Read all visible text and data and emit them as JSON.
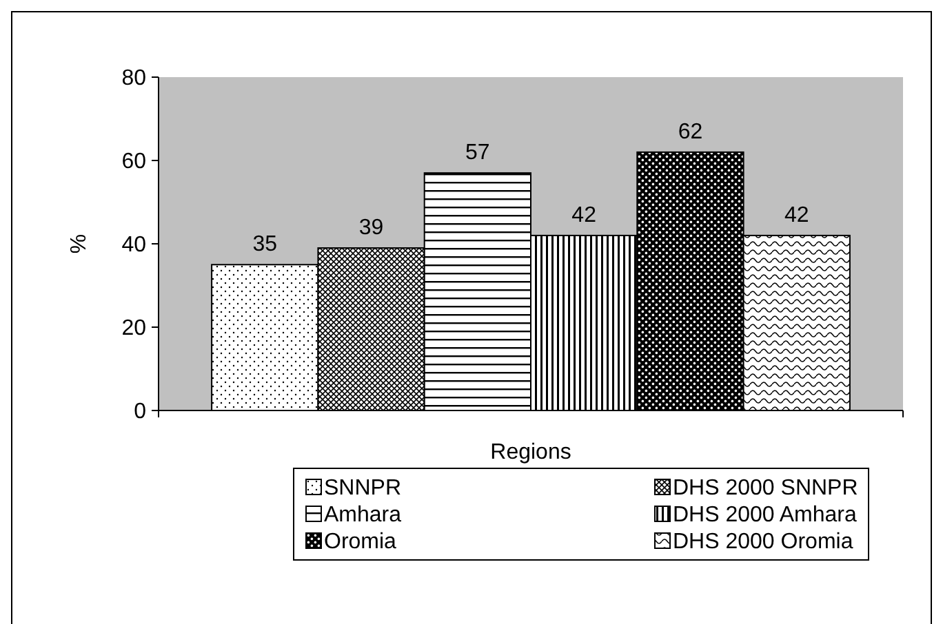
{
  "chart_data": {
    "type": "bar",
    "xlabel": "Regions",
    "ylabel": "%",
    "categories": [
      null
    ],
    "series": [
      {
        "name": "SNNPR",
        "color": "#000000",
        "values": [
          35
        ]
      },
      {
        "name": "DHS 2000 SNNPR",
        "color": "#000000",
        "values": [
          39
        ]
      },
      {
        "name": "Amhara",
        "color": "#000000",
        "values": [
          57
        ]
      },
      {
        "name": "DHS 2000 Amhara",
        "color": "#000000",
        "values": [
          42
        ]
      },
      {
        "name": "Oromia",
        "color": "#000000",
        "values": [
          62
        ]
      },
      {
        "name": "DHS 2000 Oromia",
        "color": "#000000",
        "values": [
          42
        ]
      }
    ],
    "ylim": [
      0,
      80
    ],
    "yticks": [
      0,
      20,
      40,
      60,
      80
    ],
    "grid": false,
    "legend": "bottom",
    "data_labels": true
  }
}
